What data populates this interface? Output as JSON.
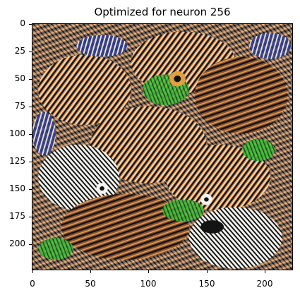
{
  "title": "Optimized for neuron 256",
  "image": {
    "description_colors": {
      "orange": "#d98a3e",
      "black": "#141414",
      "white": "#f2f2ee",
      "green": "#3fc43a",
      "blue": "#3a5fd0",
      "brown": "#8a4f2a"
    }
  },
  "axes": {
    "xlim": [
      0,
      224
    ],
    "ylim": [
      224,
      0
    ],
    "x_ticks": [
      "0",
      "50",
      "100",
      "150",
      "200"
    ],
    "y_ticks": [
      "0",
      "25",
      "50",
      "75",
      "100",
      "125",
      "150",
      "175",
      "200"
    ]
  }
}
